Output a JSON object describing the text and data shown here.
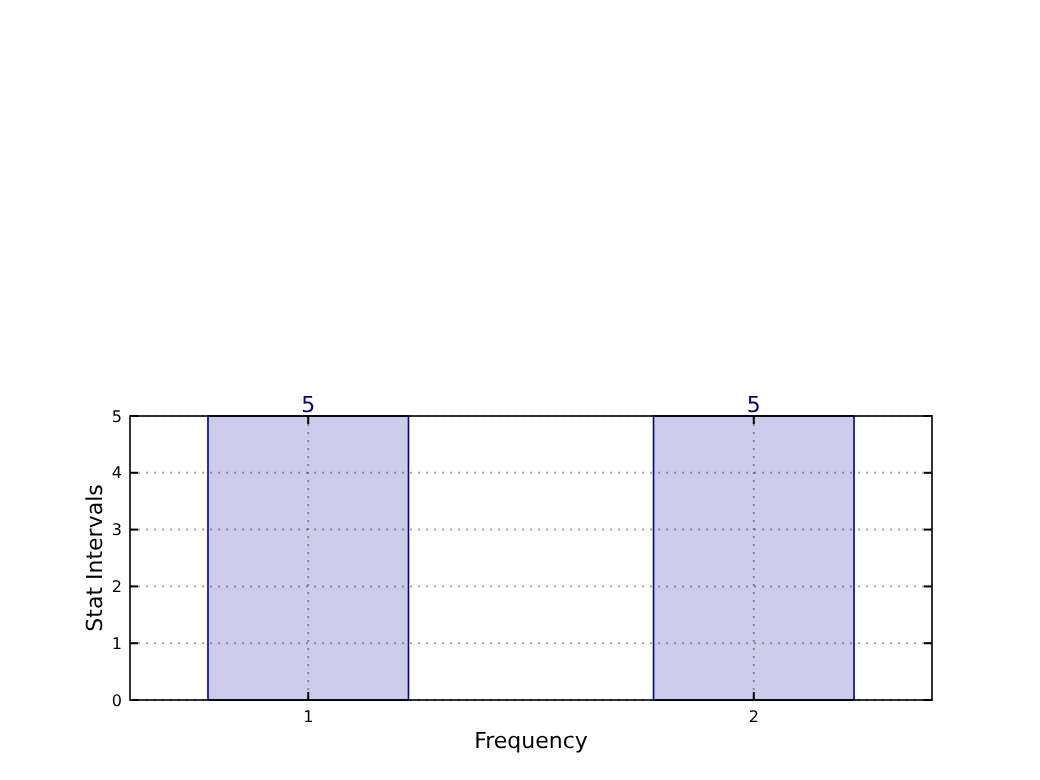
{
  "chart_data": {
    "type": "bar",
    "xlabel": "Frequency",
    "ylabel": "Stat Intervals",
    "x": [
      1,
      2
    ],
    "values": [
      5,
      5
    ],
    "color": "#ccccea",
    "xlim": [
      0.6,
      2.4
    ],
    "xticks": [
      1,
      2
    ],
    "ylim": [
      0,
      5
    ],
    "yticks": [
      0,
      1,
      2,
      3,
      4,
      5
    ],
    "grid": true,
    "data_labels": true
  }
}
